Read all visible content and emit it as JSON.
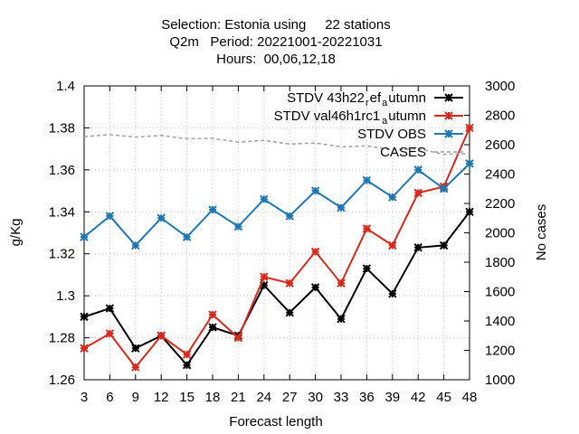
{
  "chart_data": {
    "type": "line",
    "title": [
      "Selection: Estonia using     22 stations",
      "Q2m   Period: 20221001-20221031",
      "Hours:  00,06,12,18"
    ],
    "xlabel": "Forecast length",
    "ylabel": "g/Kg",
    "y2label": "No cases",
    "x": [
      3,
      6,
      9,
      12,
      15,
      18,
      21,
      24,
      27,
      30,
      33,
      36,
      39,
      42,
      45,
      48
    ],
    "xlim": [
      3,
      48
    ],
    "ylim": [
      1.26,
      1.4
    ],
    "y2lim": [
      1000,
      3000
    ],
    "yticks": [
      "1.26",
      "1.28",
      "1.3",
      "1.32",
      "1.34",
      "1.36",
      "1.38",
      "1.4"
    ],
    "y2ticks": [
      "1000",
      "1200",
      "1400",
      "1600",
      "1800",
      "2000",
      "2200",
      "2400",
      "2600",
      "2800",
      "3000"
    ],
    "xticks": [
      "3",
      "6",
      "9",
      "12",
      "15",
      "18",
      "21",
      "24",
      "27",
      "30",
      "33",
      "36",
      "39",
      "42",
      "45",
      "48"
    ],
    "legend_position": "top-right",
    "grid": true,
    "series": [
      {
        "legend_parts": [
          "STDV 43h22",
          "r",
          "ef",
          "a",
          "utumn"
        ],
        "color": "#000000",
        "axis": "y",
        "marker": "star",
        "values": [
          1.29,
          1.294,
          1.275,
          1.281,
          1.267,
          1.285,
          1.281,
          1.305,
          1.292,
          1.304,
          1.289,
          1.313,
          1.301,
          1.323,
          1.324,
          1.34
        ]
      },
      {
        "legend_parts": [
          "STDV val46h1rc1",
          "a",
          "utumn"
        ],
        "color": "#d62a1e",
        "axis": "y",
        "marker": "star",
        "values": [
          1.275,
          1.282,
          1.266,
          1.281,
          1.272,
          1.291,
          1.28,
          1.309,
          1.306,
          1.321,
          1.306,
          1.332,
          1.324,
          1.349,
          1.352,
          1.38
        ]
      },
      {
        "legend_parts": [
          "STDV OBS"
        ],
        "color": "#1f77b4",
        "axis": "y",
        "marker": "star",
        "values": [
          1.328,
          1.338,
          1.324,
          1.337,
          1.328,
          1.341,
          1.333,
          1.346,
          1.338,
          1.35,
          1.342,
          1.355,
          1.347,
          1.36,
          1.351,
          1.363
        ]
      },
      {
        "legend_parts": [
          "CASES"
        ],
        "color": "#a0a0a0",
        "axis": "y2",
        "marker": "none",
        "dashed": true,
        "values": [
          2655,
          2668,
          2652,
          2663,
          2640,
          2643,
          2617,
          2629,
          2604,
          2612,
          2585,
          2591,
          2565,
          2573,
          2535,
          2538
        ]
      }
    ]
  }
}
